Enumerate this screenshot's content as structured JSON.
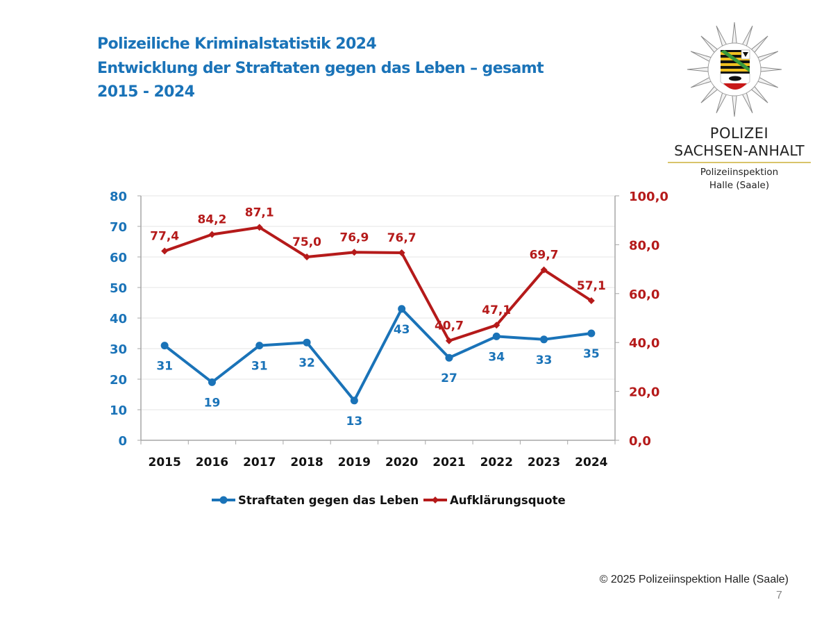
{
  "header": {
    "title_line1": "Polizeiliche Kriminalstatistik 2024",
    "title_line2": "Entwicklung der Straftaten gegen das Leben – gesamt",
    "title_line3": "2015 - 2024"
  },
  "logo": {
    "icon": "police-star-coat-of-arms-icon",
    "line1": "POLIZEI",
    "line2": "SACHSEN-ANHALT",
    "line3": "Polizeiinspektion",
    "line4": "Halle (Saale)"
  },
  "footer": {
    "copyright": "© 2025 Polizeiinspektion Halle (Saale)",
    "page_number": "7"
  },
  "colors": {
    "title": "#1a73b8",
    "series_blue": "#1a73b8",
    "series_red": "#b51a1a",
    "grid": "#e6e6e6",
    "axis": "#a6a6a6"
  },
  "chart_data": {
    "type": "line",
    "title": "",
    "xlabel": "",
    "categories": [
      "2015",
      "2016",
      "2017",
      "2018",
      "2019",
      "2020",
      "2021",
      "2022",
      "2023",
      "2024"
    ],
    "y_left": {
      "label": "",
      "range": [
        0,
        80
      ],
      "ticks": [
        "0",
        "10",
        "20",
        "30",
        "40",
        "50",
        "60",
        "70",
        "80"
      ],
      "tick_values": [
        0,
        10,
        20,
        30,
        40,
        50,
        60,
        70,
        80
      ]
    },
    "y_right": {
      "label": "",
      "range": [
        0,
        100
      ],
      "ticks": [
        "0,0",
        "20,0",
        "40,0",
        "60,0",
        "80,0",
        "100,0"
      ],
      "tick_values": [
        0,
        20,
        40,
        60,
        80,
        100
      ]
    },
    "grid": true,
    "legend_position": "bottom",
    "series": [
      {
        "name": "Straftaten gegen das Leben",
        "axis": "left",
        "marker": "circle",
        "color": "#1a73b8",
        "values": [
          31,
          19,
          31,
          32,
          13,
          43,
          27,
          34,
          33,
          35
        ],
        "labels": [
          "31",
          "19",
          "31",
          "32",
          "13",
          "43",
          "27",
          "34",
          "33",
          "35"
        ]
      },
      {
        "name": "Aufklärungsquote",
        "axis": "right",
        "marker": "diamond",
        "color": "#b51a1a",
        "values": [
          77.4,
          84.2,
          87.1,
          75.0,
          76.9,
          76.7,
          40.7,
          47.1,
          69.7,
          57.1
        ],
        "labels": [
          "77,4",
          "84,2",
          "87,1",
          "75,0",
          "76,9",
          "76,7",
          "40,7",
          "47,1",
          "69,7",
          "57,1"
        ]
      }
    ]
  }
}
